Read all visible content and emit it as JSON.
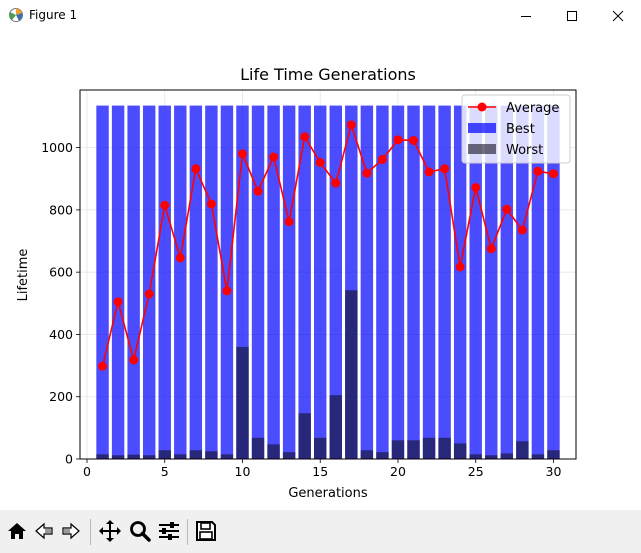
{
  "window": {
    "title": "Figure 1",
    "app_icon": "matplotlib-icon",
    "minimize_icon": "minimize-icon",
    "maximize_icon": "maximize-icon",
    "close_icon": "close-icon"
  },
  "toolbar": {
    "items": [
      {
        "name": "home-icon"
      },
      {
        "name": "back-icon"
      },
      {
        "name": "forward-icon"
      },
      {
        "name": "pan-icon"
      },
      {
        "name": "zoom-icon"
      },
      {
        "name": "configure-subplots-icon"
      },
      {
        "name": "save-icon"
      }
    ]
  },
  "chart_data": {
    "type": "bar",
    "title": "Life Time Generations",
    "xlabel": "Generations",
    "ylabel": "Lifetime",
    "xlim": [
      -0.45,
      31.45
    ],
    "ylim": [
      0,
      1185
    ],
    "xticks": [
      0,
      5,
      10,
      15,
      20,
      25,
      30
    ],
    "yticks": [
      0,
      200,
      400,
      600,
      800,
      1000
    ],
    "grid": true,
    "legend_position": "top-right",
    "x": [
      1,
      2,
      3,
      4,
      5,
      6,
      7,
      8,
      9,
      10,
      11,
      12,
      13,
      14,
      15,
      16,
      17,
      18,
      19,
      20,
      21,
      22,
      23,
      24,
      25,
      26,
      27,
      28,
      29,
      30
    ],
    "series": [
      {
        "name": "Best",
        "kind": "bar",
        "color": "#0000ff",
        "alpha": 0.7,
        "values": [
          1135,
          1135,
          1135,
          1135,
          1135,
          1135,
          1135,
          1135,
          1135,
          1135,
          1135,
          1135,
          1135,
          1135,
          1135,
          1135,
          1135,
          1135,
          1135,
          1135,
          1135,
          1135,
          1135,
          1135,
          1135,
          1135,
          1135,
          1135,
          1135,
          1135
        ]
      },
      {
        "name": "Worst",
        "kind": "bar",
        "color": "#111122",
        "alpha": 0.6,
        "values": [
          15,
          12,
          14,
          12,
          28,
          15,
          28,
          25,
          15,
          360,
          68,
          47,
          22,
          147,
          68,
          205,
          542,
          28,
          22,
          60,
          60,
          68,
          68,
          50,
          15,
          12,
          18,
          57,
          15,
          28
        ]
      },
      {
        "name": "Average",
        "kind": "line",
        "color": "#ff0000",
        "values": [
          298,
          505,
          318,
          530,
          815,
          646,
          932,
          819,
          540,
          980,
          860,
          970,
          762,
          1035,
          952,
          886,
          1073,
          918,
          962,
          1025,
          1023,
          922,
          932,
          617,
          872,
          675,
          802,
          735,
          924,
          916
        ]
      }
    ]
  }
}
